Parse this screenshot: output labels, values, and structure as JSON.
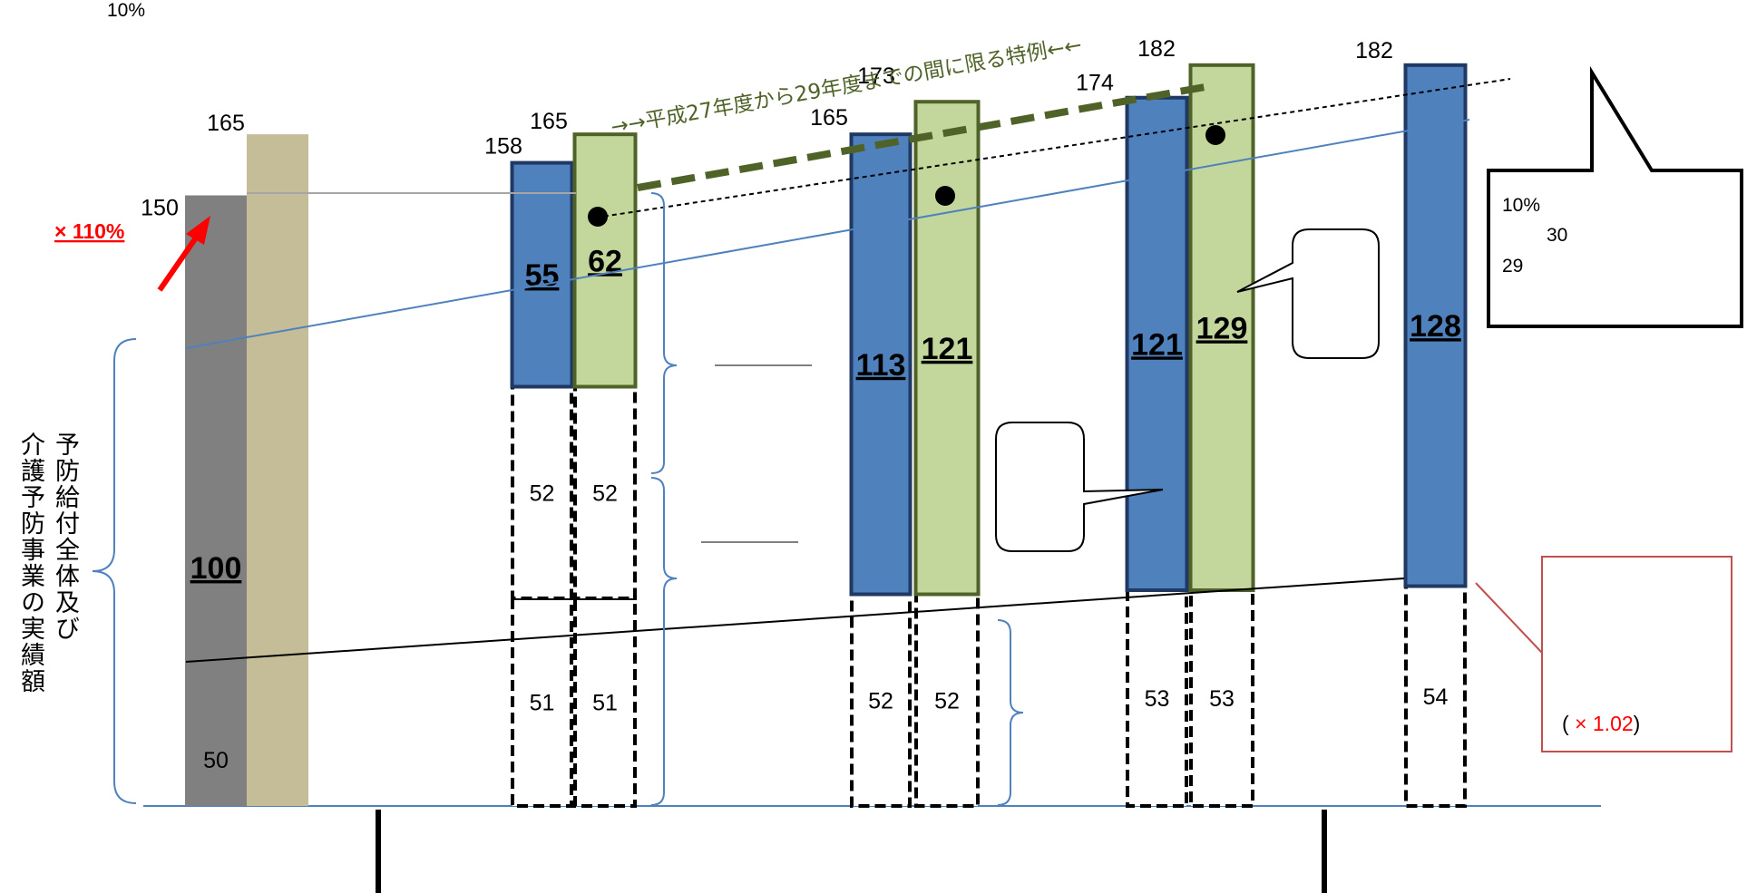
{
  "top_note": "10%",
  "rate_label": "× 110%",
  "special_label": "→→平成27年度から29年度までの間に限る特例←←",
  "callout_note": {
    "line1": "10%",
    "line2": "30",
    "line3": "29"
  },
  "growth_note": {
    "prefix": "( ",
    "symbol": "×",
    "value": "1.02",
    "suffix": ")"
  },
  "y_axis_label_1": "予防給付全体及び",
  "y_axis_label_2": "介護予防事業の実績額",
  "colors": {
    "baseline_gray": "#808080",
    "baseline_tan": "#c4bd97",
    "blue": "#4f81bd",
    "blue_border": "#1f3864",
    "green": "#c3d69b",
    "green_border": "#4f6228",
    "accent_red": "#ff0000",
    "dashed_green": "#4f6228"
  },
  "chart_data": {
    "type": "bar",
    "title": "",
    "xlabel": "",
    "ylabel": "予防給付全体及び介護予防事業の実績額",
    "ylim": [
      0,
      200
    ],
    "bars": [
      {
        "id": "base",
        "color": "gray",
        "total": "150",
        "segments": [
          {
            "value": 50,
            "label": "50"
          },
          {
            "value": 100,
            "label": "100"
          }
        ]
      },
      {
        "id": "cap",
        "color": "tan",
        "total": "165",
        "segments": []
      },
      {
        "id": "y1-blue",
        "color": "blue",
        "total": "158",
        "segments": [
          {
            "value": 51,
            "label": "51"
          },
          {
            "value": 52,
            "label": "52"
          },
          {
            "value": 55,
            "label": "55"
          }
        ]
      },
      {
        "id": "y1-green",
        "color": "green",
        "total": "165",
        "segments": [
          {
            "value": 51,
            "label": "51"
          },
          {
            "value": 52,
            "label": "52"
          },
          {
            "value": 62,
            "label": "62"
          }
        ]
      },
      {
        "id": "y2-blue",
        "color": "blue",
        "total": "165",
        "segments": [
          {
            "value": 52,
            "label": "52"
          },
          {
            "value": 113,
            "label": "113"
          }
        ]
      },
      {
        "id": "y2-green",
        "color": "green",
        "total": "173",
        "segments": [
          {
            "value": 52,
            "label": "52"
          },
          {
            "value": 121,
            "label": "121"
          }
        ]
      },
      {
        "id": "y3-blue",
        "color": "blue",
        "total": "174",
        "segments": [
          {
            "value": 53,
            "label": "53"
          },
          {
            "value": 121,
            "label": "121"
          }
        ]
      },
      {
        "id": "y3-green",
        "color": "green",
        "total": "182",
        "segments": [
          {
            "value": 53,
            "label": "53"
          },
          {
            "value": 129,
            "label": "129"
          }
        ]
      },
      {
        "id": "y4-blue",
        "color": "blue",
        "total": "182",
        "segments": [
          {
            "value": 54,
            "label": "54"
          },
          {
            "value": 128,
            "label": "128"
          }
        ]
      }
    ],
    "trend_lines": {
      "blue_line": [
        150,
        190
      ],
      "black_line": [
        47,
        56
      ],
      "dotted_line": [
        163,
        197
      ]
    }
  }
}
